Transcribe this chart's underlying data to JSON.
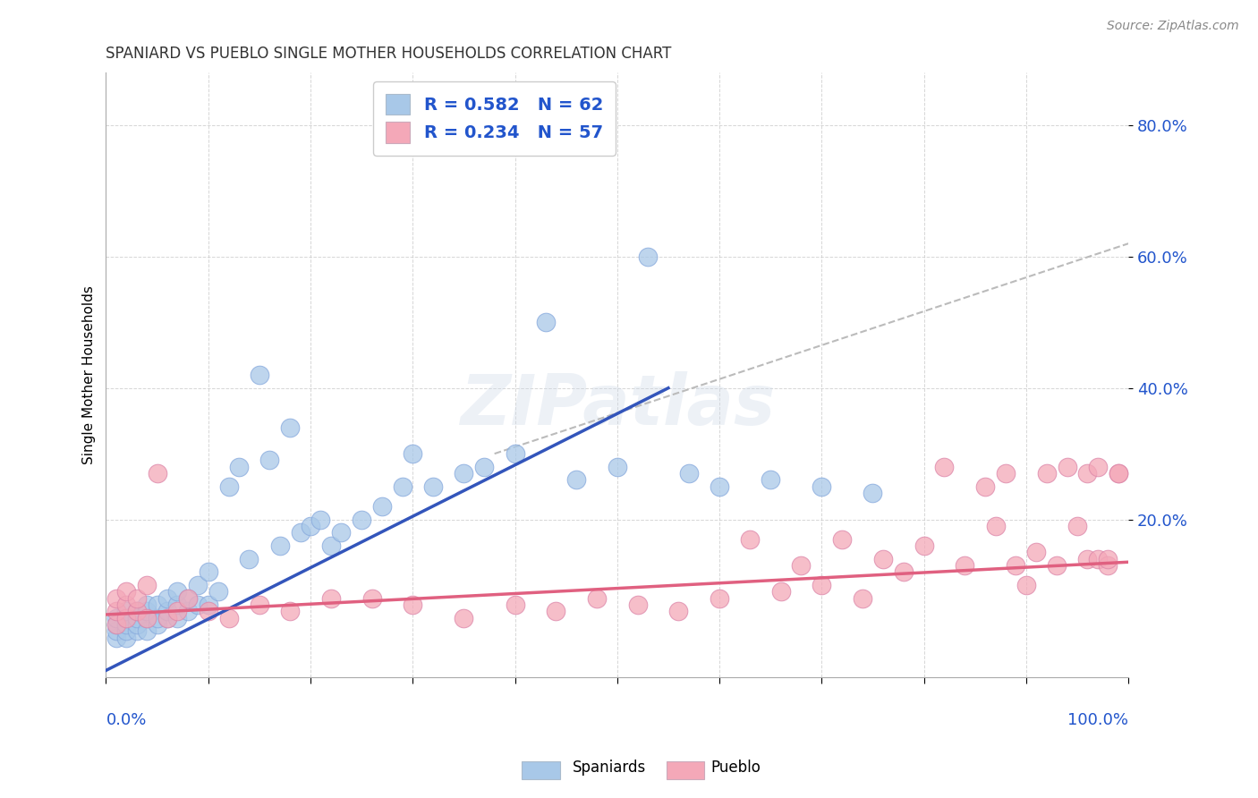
{
  "title": "SPANIARD VS PUEBLO SINGLE MOTHER HOUSEHOLDS CORRELATION CHART",
  "source": "Source: ZipAtlas.com",
  "ylabel": "Single Mother Households",
  "ytick_labels": [
    "20.0%",
    "40.0%",
    "60.0%",
    "80.0%"
  ],
  "ytick_values": [
    0.2,
    0.4,
    0.6,
    0.8
  ],
  "xlim": [
    0,
    1.0
  ],
  "ylim": [
    -0.04,
    0.88
  ],
  "legend_entries": [
    {
      "label": "R = 0.582   N = 62",
      "color": "#a8c8e8"
    },
    {
      "label": "R = 0.234   N = 57",
      "color": "#f4a8b8"
    }
  ],
  "watermark": "ZIPatlas",
  "blue_color": "#a8c8e8",
  "pink_color": "#f4a8b8",
  "blue_line_color": "#3355bb",
  "pink_line_color": "#e06080",
  "dashed_line_color": "#bbbbbb",
  "blue_line_x": [
    0.0,
    0.55
  ],
  "blue_line_y": [
    -0.03,
    0.4
  ],
  "pink_line_x": [
    0.0,
    1.0
  ],
  "pink_line_y": [
    0.055,
    0.135
  ],
  "dashed_line_x": [
    0.38,
    1.0
  ],
  "dashed_line_y": [
    0.3,
    0.62
  ],
  "spaniards_x": [
    0.01,
    0.01,
    0.01,
    0.01,
    0.02,
    0.02,
    0.02,
    0.02,
    0.02,
    0.03,
    0.03,
    0.03,
    0.03,
    0.04,
    0.04,
    0.04,
    0.04,
    0.05,
    0.05,
    0.05,
    0.06,
    0.06,
    0.06,
    0.07,
    0.07,
    0.07,
    0.08,
    0.08,
    0.09,
    0.09,
    0.1,
    0.1,
    0.11,
    0.12,
    0.13,
    0.14,
    0.15,
    0.16,
    0.17,
    0.18,
    0.19,
    0.2,
    0.21,
    0.22,
    0.23,
    0.25,
    0.27,
    0.29,
    0.3,
    0.32,
    0.35,
    0.37,
    0.4,
    0.43,
    0.46,
    0.5,
    0.53,
    0.57,
    0.6,
    0.65,
    0.7,
    0.75
  ],
  "spaniards_y": [
    0.02,
    0.03,
    0.04,
    0.05,
    0.02,
    0.03,
    0.04,
    0.05,
    0.06,
    0.03,
    0.04,
    0.05,
    0.06,
    0.03,
    0.05,
    0.06,
    0.07,
    0.04,
    0.05,
    0.07,
    0.05,
    0.06,
    0.08,
    0.05,
    0.07,
    0.09,
    0.06,
    0.08,
    0.07,
    0.1,
    0.07,
    0.12,
    0.09,
    0.25,
    0.28,
    0.14,
    0.42,
    0.29,
    0.16,
    0.34,
    0.18,
    0.19,
    0.2,
    0.16,
    0.18,
    0.2,
    0.22,
    0.25,
    0.3,
    0.25,
    0.27,
    0.28,
    0.3,
    0.5,
    0.26,
    0.28,
    0.6,
    0.27,
    0.25,
    0.26,
    0.25,
    0.24
  ],
  "pueblo_x": [
    0.01,
    0.01,
    0.01,
    0.02,
    0.02,
    0.02,
    0.03,
    0.03,
    0.04,
    0.04,
    0.05,
    0.06,
    0.07,
    0.08,
    0.1,
    0.12,
    0.15,
    0.18,
    0.22,
    0.26,
    0.3,
    0.35,
    0.4,
    0.44,
    0.48,
    0.52,
    0.56,
    0.6,
    0.63,
    0.66,
    0.68,
    0.7,
    0.72,
    0.74,
    0.76,
    0.78,
    0.8,
    0.82,
    0.84,
    0.86,
    0.87,
    0.88,
    0.89,
    0.9,
    0.91,
    0.92,
    0.93,
    0.94,
    0.95,
    0.96,
    0.96,
    0.97,
    0.97,
    0.98,
    0.98,
    0.99,
    0.99
  ],
  "pueblo_y": [
    0.04,
    0.06,
    0.08,
    0.05,
    0.07,
    0.09,
    0.06,
    0.08,
    0.05,
    0.1,
    0.27,
    0.05,
    0.06,
    0.08,
    0.06,
    0.05,
    0.07,
    0.06,
    0.08,
    0.08,
    0.07,
    0.05,
    0.07,
    0.06,
    0.08,
    0.07,
    0.06,
    0.08,
    0.17,
    0.09,
    0.13,
    0.1,
    0.17,
    0.08,
    0.14,
    0.12,
    0.16,
    0.28,
    0.13,
    0.25,
    0.19,
    0.27,
    0.13,
    0.1,
    0.15,
    0.27,
    0.13,
    0.28,
    0.19,
    0.14,
    0.27,
    0.14,
    0.28,
    0.13,
    0.14,
    0.27,
    0.27
  ]
}
